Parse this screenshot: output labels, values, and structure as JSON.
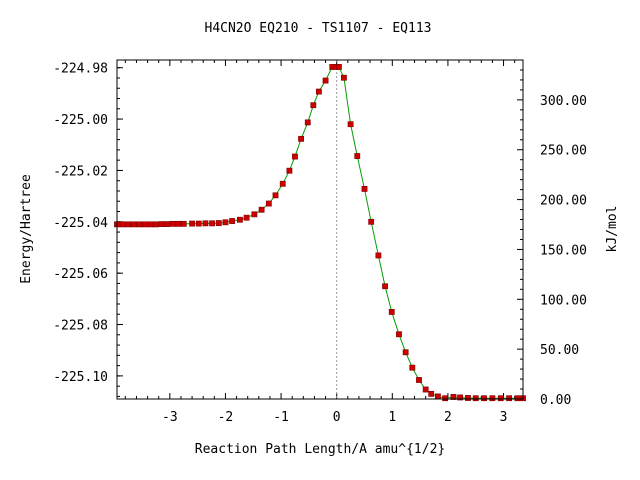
{
  "chart_data": {
    "type": "line",
    "title": "H4CN2O   EQ210 - TS1107 - EQ113",
    "xlabel": "Reaction Path Length/A amu^{1/2}",
    "ylabel": "Energy/Hartree",
    "y2label": "kJ/mol",
    "xlim": [
      -3.95,
      3.35
    ],
    "ylim": [
      -225.109,
      -224.977
    ],
    "y2lim": [
      0,
      340
    ],
    "x_ticks": [
      -3,
      -2,
      -1,
      0,
      1,
      2,
      3
    ],
    "x_tick_labels": [
      "-3",
      "-2",
      "-1",
      "0",
      "1",
      "2",
      "3"
    ],
    "y_ticks": [
      -224.98,
      -225.0,
      -225.02,
      -225.04,
      -225.06,
      -225.08,
      -225.1
    ],
    "y_tick_labels": [
      "-224.98",
      "-225.00",
      "-225.02",
      "-225.04",
      "-225.06",
      "-225.08",
      "-225.10"
    ],
    "y2_ticks": [
      300,
      250,
      200,
      150,
      100,
      50,
      0
    ],
    "y2_tick_labels": [
      "300.00",
      "250.00",
      "200.00",
      "150.00",
      "100.00",
      "50.00",
      "0.00"
    ],
    "grid": false,
    "series": [
      {
        "color": "#cc0000",
        "line_color": "#00a000",
        "x": [
          -3.95,
          -3.85,
          -3.75,
          -3.65,
          -3.55,
          -3.45,
          -3.35,
          -3.25,
          -3.15,
          -3.05,
          -2.95,
          -2.85,
          -2.75,
          -2.6,
          -2.48,
          -2.36,
          -2.24,
          -2.12,
          -2.0,
          -1.88,
          -1.74,
          -1.62,
          -1.48,
          -1.35,
          -1.22,
          -1.1,
          -0.97,
          -0.85,
          -0.75,
          -0.64,
          -0.52,
          -0.42,
          -0.32,
          -0.2,
          -0.08,
          -0.02,
          0.04,
          0.13,
          0.25,
          0.37,
          0.5,
          0.62,
          0.75,
          0.87,
          0.99,
          1.12,
          1.24,
          1.36,
          1.48,
          1.6,
          1.7,
          1.82,
          1.95,
          2.1,
          2.22,
          2.36,
          2.5,
          2.65,
          2.8,
          2.95,
          3.1,
          3.25,
          3.35
        ],
        "y": [
          -225.041,
          -225.041,
          -225.041,
          -225.041,
          -225.041,
          -225.041,
          -225.041,
          -225.041,
          -225.0409,
          -225.0409,
          -225.0408,
          -225.0408,
          -225.0408,
          -225.0407,
          -225.0407,
          -225.0406,
          -225.0406,
          -225.0405,
          -225.0402,
          -225.0397,
          -225.0392,
          -225.0384,
          -225.0371,
          -225.0353,
          -225.0329,
          -225.0297,
          -225.0252,
          -225.0201,
          -225.0146,
          -225.0077,
          -225.0013,
          -224.9946,
          -224.9893,
          -224.985,
          -224.9797,
          -224.9797,
          -224.9797,
          -224.9839,
          -225.002,
          -225.0144,
          -225.0272,
          -225.04,
          -225.0531,
          -225.0651,
          -225.0751,
          -225.0838,
          -225.0908,
          -225.0968,
          -225.1016,
          -225.1053,
          -225.107,
          -225.108,
          -225.1087,
          -225.1082,
          -225.1084,
          -225.1086,
          -225.1087,
          -225.1087,
          -225.1087,
          -225.1087,
          -225.1087,
          -225.1087,
          -225.1087
        ]
      }
    ]
  }
}
